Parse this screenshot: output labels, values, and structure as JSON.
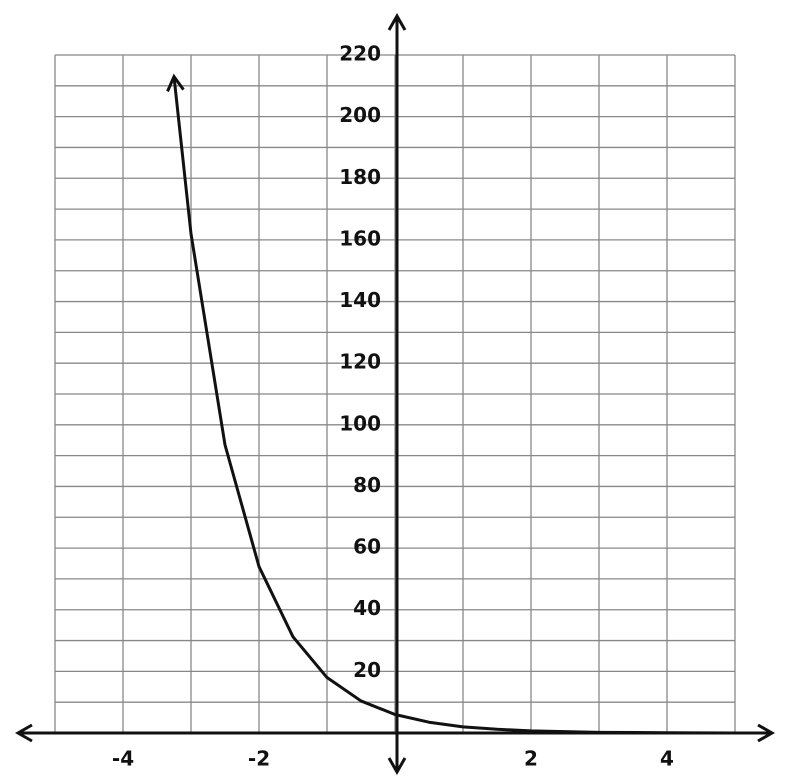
{
  "chart_data": {
    "type": "line",
    "x": [
      -3.25,
      -3,
      -2.5,
      -2,
      -1.5,
      -1,
      -0.5,
      0,
      0.5,
      1,
      1.5,
      2,
      3,
      4,
      5
    ],
    "series": [
      {
        "color": "#111111",
        "values": [
          213,
          162,
          93.5,
          54,
          31.2,
          18,
          10.4,
          6,
          3.5,
          2,
          1.2,
          0.7,
          0.2,
          0.1,
          0
        ]
      }
    ],
    "xlim": [
      -5,
      5
    ],
    "ylim": [
      0,
      220
    ],
    "xticks": [
      -4,
      -2,
      2,
      4
    ],
    "yticks": [
      20,
      40,
      60,
      80,
      100,
      120,
      140,
      160,
      180,
      200,
      220
    ],
    "xgrid": [
      -5,
      -4,
      -3,
      -2,
      -1,
      0,
      1,
      2,
      3,
      4,
      5
    ],
    "ygrid": [
      0,
      10,
      20,
      30,
      40,
      50,
      60,
      70,
      80,
      90,
      100,
      110,
      120,
      130,
      140,
      150,
      160,
      170,
      180,
      190,
      200,
      210,
      220
    ],
    "grid": true
  }
}
